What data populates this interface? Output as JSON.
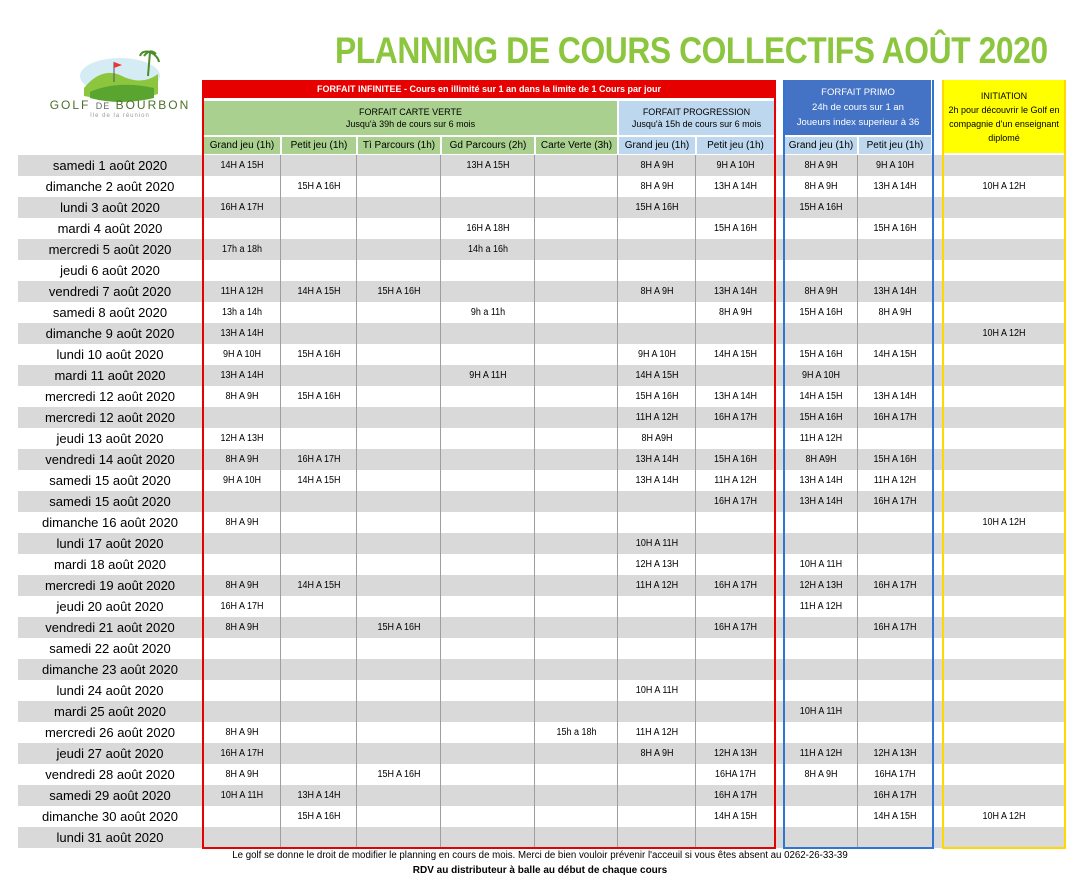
{
  "logo": {
    "name_left": "GOLF",
    "name_mid": "DE",
    "name_right": "BOURBON",
    "tagline": "île de la réunion"
  },
  "title": "PLANNING DE COURS COLLECTIFS AOÛT 2020",
  "headers": {
    "infinitee": "FORFAIT INFINITEE  - Cours en illimité sur 1 an dans la limite de 1 Cours par jour",
    "verte_line1": "FORFAIT CARTE VERTE",
    "verte_line2": "Jusqu'à 39h de cours sur 6 mois",
    "progression_line1": "FORFAIT PROGRESSION",
    "progression_line2": "Jusqu'à 15h de cours sur 6 mois",
    "primo_line1": "FORFAIT  PRIMO",
    "primo_line2": "24h de cours sur 1 an",
    "primo_line3": "Joueurs index superieur à 36",
    "init_line1": "INITIATION",
    "init_line2": "2h pour découvrir le Golf en compagnie d'un enseignant diplomé"
  },
  "columns": [
    "Grand jeu (1h)",
    "Petit jeu (1h)",
    "Tì Parcours (1h)",
    "Gd Parcours (2h)",
    "Carte Verte (3h)",
    "Grand jeu (1h)",
    "Petit jeu (1h)",
    "Grand jeu (1h)",
    "Petit jeu (1h)"
  ],
  "rows": [
    {
      "day": "samedi 1 août 2020",
      "c": [
        "14H A 15H",
        "",
        "",
        "13H A 15H",
        "",
        "8H A 9H",
        "9H A 10H",
        "8H A 9H",
        "9H A 10H",
        ""
      ]
    },
    {
      "day": "dimanche 2 août 2020",
      "c": [
        "",
        "15H A 16H",
        "",
        "",
        "",
        "8H A 9H",
        "13H A 14H",
        "8H A 9H",
        "13H A 14H",
        "10H A 12H"
      ]
    },
    {
      "day": "lundi 3 août 2020",
      "c": [
        "16H A 17H",
        "",
        "",
        "",
        "",
        "15H A 16H",
        "",
        "15H A 16H",
        "",
        ""
      ]
    },
    {
      "day": "mardi 4 août 2020",
      "c": [
        "",
        "",
        "",
        "16H A 18H",
        "",
        "",
        "15H A 16H",
        "",
        "15H A 16H",
        ""
      ]
    },
    {
      "day": "mercredi 5 août 2020",
      "c": [
        "17h a 18h",
        "",
        "",
        "14h a 16h",
        "",
        "",
        "",
        "",
        "",
        ""
      ]
    },
    {
      "day": "jeudi 6 août 2020",
      "c": [
        "",
        "",
        "",
        "",
        "",
        "",
        "",
        "",
        "",
        ""
      ]
    },
    {
      "day": "vendredi 7 août 2020",
      "c": [
        "11H A 12H",
        "14H A 15H",
        "15H A 16H",
        "",
        "",
        "8H A 9H",
        "13H A 14H",
        "8H A 9H",
        "13H A 14H",
        ""
      ]
    },
    {
      "day": "samedi 8 août 2020",
      "c": [
        "13h a 14h",
        "",
        "",
        "9h a 11h",
        "",
        "",
        "8H A 9H",
        "15H A 16H",
        "8H A 9H",
        ""
      ]
    },
    {
      "day": "dimanche 9 août 2020",
      "c": [
        "13H A 14H",
        "",
        "",
        "",
        "",
        "",
        "",
        "",
        "",
        "10H A 12H"
      ]
    },
    {
      "day": "lundi 10 août 2020",
      "c": [
        "9H A 10H",
        "15H A 16H",
        "",
        "",
        "",
        "9H A 10H",
        "14H A 15H",
        "15H A 16H",
        "14H A 15H",
        ""
      ]
    },
    {
      "day": "mardi 11 août 2020",
      "c": [
        "13H A 14H",
        "",
        "",
        "9H A 11H",
        "",
        "14H A 15H",
        "",
        "9H A 10H",
        "",
        ""
      ]
    },
    {
      "day": "mercredi 12 août 2020",
      "c": [
        "8H A 9H",
        "15H A 16H",
        "",
        "",
        "",
        "15H A 16H",
        "13H A 14H",
        "14H A 15H",
        "13H A 14H",
        ""
      ]
    },
    {
      "day": "mercredi 12 août 2020",
      "c": [
        "",
        "",
        "",
        "",
        "",
        "11H A 12H",
        "16H A 17H",
        "15H A 16H",
        "16H A 17H",
        ""
      ]
    },
    {
      "day": "jeudi 13 août 2020",
      "c": [
        "12H A 13H",
        "",
        "",
        "",
        "",
        "8H A9H",
        "",
        "11H A 12H",
        "",
        ""
      ]
    },
    {
      "day": "vendredi 14 août 2020",
      "c": [
        "8H A 9H",
        "16H A 17H",
        "",
        "",
        "",
        "13H A 14H",
        "15H A 16H",
        "8H A9H",
        "15H A 16H",
        ""
      ]
    },
    {
      "day": "samedi 15 août 2020",
      "c": [
        "9H A 10H",
        "14H A 15H",
        "",
        "",
        "",
        "13H A 14H",
        "11H A 12H",
        "13H A 14H",
        "11H A 12H",
        ""
      ]
    },
    {
      "day": "samedi 15 août 2020",
      "c": [
        "",
        "",
        "",
        "",
        "",
        "",
        "16H A 17H",
        "13H A 14H",
        "16H A 17H",
        ""
      ]
    },
    {
      "day": "dimanche 16 août 2020",
      "c": [
        "8H A 9H",
        "",
        "",
        "",
        "",
        "",
        "",
        "",
        "",
        "10H A 12H"
      ]
    },
    {
      "day": "lundi 17 août 2020",
      "c": [
        "",
        "",
        "",
        "",
        "",
        "10H A 11H",
        "",
        "",
        "",
        ""
      ]
    },
    {
      "day": "mardi 18 août 2020",
      "c": [
        "",
        "",
        "",
        "",
        "",
        "12H A 13H",
        "",
        "10H A 11H",
        "",
        ""
      ]
    },
    {
      "day": "mercredi 19 août 2020",
      "c": [
        "8H A 9H",
        "14H A 15H",
        "",
        "",
        "",
        "11H A 12H",
        "16H A 17H",
        "12H A 13H",
        "16H A 17H",
        ""
      ]
    },
    {
      "day": "jeudi 20 août 2020",
      "c": [
        "16H A 17H",
        "",
        "",
        "",
        "",
        "",
        "",
        "11H A 12H",
        "",
        ""
      ]
    },
    {
      "day": "vendredi 21 août 2020",
      "c": [
        "8H A 9H",
        "",
        "15H A 16H",
        "",
        "",
        "",
        "16H A 17H",
        "",
        "16H A 17H",
        ""
      ]
    },
    {
      "day": "samedi 22 août 2020",
      "c": [
        "",
        "",
        "",
        "",
        "",
        "",
        "",
        "",
        "",
        ""
      ]
    },
    {
      "day": "dimanche 23 août 2020",
      "c": [
        "",
        "",
        "",
        "",
        "",
        "",
        "",
        "",
        "",
        ""
      ]
    },
    {
      "day": "lundi 24 août 2020",
      "c": [
        "",
        "",
        "",
        "",
        "",
        "10H A 11H",
        "",
        "",
        "",
        ""
      ]
    },
    {
      "day": "mardi 25 août 2020",
      "c": [
        "",
        "",
        "",
        "",
        "",
        "",
        "",
        "10H A 11H",
        "",
        ""
      ]
    },
    {
      "day": "mercredi 26 août 2020",
      "c": [
        "8H A 9H",
        "",
        "",
        "",
        "15h a 18h",
        "11H A 12H",
        "",
        "",
        "",
        ""
      ]
    },
    {
      "day": "jeudi 27 août 2020",
      "c": [
        "16H A 17H",
        "",
        "",
        "",
        "",
        "8H A 9H",
        "12H A 13H",
        "11H A 12H",
        "12H A 13H",
        ""
      ]
    },
    {
      "day": "vendredi 28 août 2020",
      "c": [
        "8H A 9H",
        "",
        "15H A 16H",
        "",
        "",
        "",
        "16HA 17H",
        "8H A 9H",
        "16HA 17H",
        ""
      ]
    },
    {
      "day": "samedi 29 août 2020",
      "c": [
        "10H A 11H",
        "13H A 14H",
        "",
        "",
        "",
        "",
        "16H A 17H",
        "",
        "16H A 17H",
        ""
      ]
    },
    {
      "day": "dimanche 30 août 2020",
      "c": [
        "",
        "15H A 16H",
        "",
        "",
        "",
        "",
        "14H A 15H",
        "",
        "14H A 15H",
        "10H A 12H"
      ]
    },
    {
      "day": "lundi 31 août 2020",
      "c": [
        "",
        "",
        "",
        "",
        "",
        "",
        "",
        "",
        "",
        ""
      ]
    }
  ],
  "footer_line1": "Le golf se donne le droit de modifier le planning en cours de mois. Merci de bien vouloir prévenir l'acceuil si vous êtes absent au 0262-26-33-39",
  "footer_line2": "RDV au distributeur à balle au début de chaque cours",
  "colors": {
    "title": "#8cc63f",
    "infinitee": "#e60000",
    "verte": "#a9d08e",
    "progression": "#bdd7ee",
    "primo": "#4472c4",
    "initiation": "#ffff00",
    "row_shade": "#d9d9d9"
  }
}
